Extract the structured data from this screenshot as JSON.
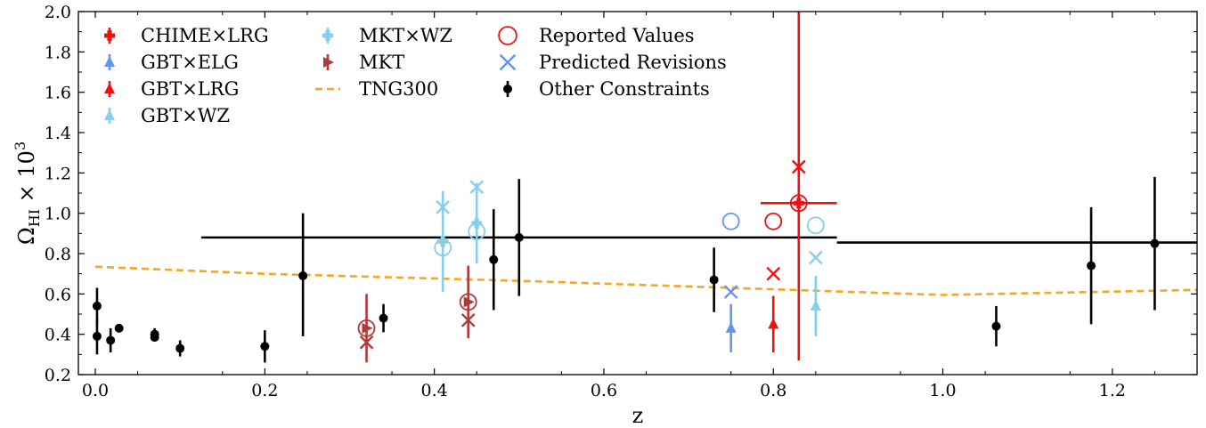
{
  "chart_data": {
    "type": "scatter",
    "title": "",
    "xlabel": "z",
    "ylabel": "Ω_HI × 10^3",
    "xlim": [
      -0.02,
      1.3
    ],
    "ylim": [
      0.2,
      2.0
    ],
    "x_ticks": [
      0.0,
      0.2,
      0.4,
      0.6,
      0.8,
      1.0,
      1.2
    ],
    "x_tick_labels": [
      "0.0",
      "0.2",
      "0.4",
      "0.6",
      "0.8",
      "1.0",
      "1.2"
    ],
    "y_ticks": [
      0.2,
      0.4,
      0.6,
      0.8,
      1.0,
      1.2,
      1.4,
      1.6,
      1.8,
      2.0
    ],
    "y_tick_labels": [
      "0.2",
      "0.4",
      "0.6",
      "0.8",
      "1.0",
      "1.2",
      "1.4",
      "1.6",
      "1.8",
      "2.0"
    ],
    "grid": false,
    "legend_position": "top-left",
    "series": [
      {
        "name": "CHIME×LRG",
        "marker": "plus",
        "color": "#ee1111",
        "points": [
          {
            "x": 0.83,
            "y": 1.05,
            "yerr_low": 0.78,
            "yerr_high": 0.95,
            "xerr": 0.045
          }
        ]
      },
      {
        "name": "GBT×ELG",
        "marker": "triangle-up",
        "color": "#6495ed",
        "points": [
          {
            "x": 0.75,
            "y": 0.43,
            "yerr_low": 0.12,
            "yerr_high": 0.12
          }
        ]
      },
      {
        "name": "GBT×LRG",
        "marker": "triangle-up",
        "color": "#ee1111",
        "points": [
          {
            "x": 0.8,
            "y": 0.45,
            "yerr_low": 0.14,
            "yerr_high": 0.14
          }
        ]
      },
      {
        "name": "GBT×WZ",
        "marker": "triangle-up",
        "color": "#87ceeb",
        "points": [
          {
            "x": 0.85,
            "y": 0.54,
            "yerr_low": 0.15,
            "yerr_high": 0.15
          }
        ]
      },
      {
        "name": "MKT×WZ",
        "marker": "plus",
        "color": "#87ceeb",
        "points": [
          {
            "x": 0.41,
            "y": 0.86,
            "yerr_low": 0.25,
            "yerr_high": 0.25
          },
          {
            "x": 0.45,
            "y": 0.95,
            "yerr_low": 0.2,
            "yerr_high": 0.2
          }
        ]
      },
      {
        "name": "MKT",
        "marker": "triangle-right",
        "color": "#b03a3a",
        "points": [
          {
            "x": 0.32,
            "y": 0.43,
            "yerr_low": 0.17,
            "yerr_high": 0.17
          },
          {
            "x": 0.44,
            "y": 0.56,
            "yerr_low": 0.18,
            "yerr_high": 0.18
          }
        ]
      },
      {
        "name": "Other Constraints",
        "marker": "dot",
        "color": "#000000",
        "points": [
          {
            "x": 0.002,
            "y": 0.54,
            "yerr_low": 0.09,
            "yerr_high": 0.09
          },
          {
            "x": 0.002,
            "y": 0.39,
            "yerr_low": 0.09,
            "yerr_high": 0.09
          },
          {
            "x": 0.018,
            "y": 0.37,
            "yerr_low": 0.06,
            "yerr_high": 0.06
          },
          {
            "x": 0.028,
            "y": 0.43,
            "yerr_low": 0.02,
            "yerr_high": 0.02
          },
          {
            "x": 0.07,
            "y": 0.4,
            "yerr_low": 0.03,
            "yerr_high": 0.03
          },
          {
            "x": 0.07,
            "y": 0.385,
            "yerr_low": 0.02,
            "yerr_high": 0.02
          },
          {
            "x": 0.1,
            "y": 0.33,
            "yerr_low": 0.04,
            "yerr_high": 0.04
          },
          {
            "x": 0.2,
            "y": 0.34,
            "yerr_low": 0.08,
            "yerr_high": 0.08
          },
          {
            "x": 0.245,
            "y": 0.69,
            "yerr_low": 0.3,
            "yerr_high": 0.31
          },
          {
            "x": 0.34,
            "y": 0.48,
            "yerr_low": 0.07,
            "yerr_high": 0.07
          },
          {
            "x": 0.47,
            "y": 0.77,
            "yerr_low": 0.25,
            "yerr_high": 0.25
          },
          {
            "x": 0.5,
            "y": 0.88,
            "yerr_low": 0.29,
            "yerr_high": 0.29
          },
          {
            "x": 0.73,
            "y": 0.67,
            "yerr_low": 0.16,
            "yerr_high": 0.16
          },
          {
            "x": 1.063,
            "y": 0.44,
            "yerr_low": 0.1,
            "yerr_high": 0.1
          },
          {
            "x": 1.175,
            "y": 0.74,
            "yerr_low": 0.29,
            "yerr_high": 0.29
          },
          {
            "x": 1.25,
            "y": 0.85,
            "yerr_low": 0.33,
            "yerr_high": 0.33
          }
        ],
        "hlines": [
          {
            "y": 0.88,
            "x_from": 0.125,
            "x_to": 0.875
          },
          {
            "y": 0.855,
            "x_from": 0.875,
            "x_to": 1.3
          }
        ]
      },
      {
        "name": "TNG300",
        "marker": "dashed-line",
        "color": "#f5a623",
        "line": [
          {
            "x": 0.0,
            "y": 0.735
          },
          {
            "x": 0.2,
            "y": 0.7
          },
          {
            "x": 0.5,
            "y": 0.665
          },
          {
            "x": 1.0,
            "y": 0.595
          },
          {
            "x": 1.3,
            "y": 0.62
          }
        ]
      },
      {
        "name": "Reported Values",
        "marker": "open-circle",
        "points": [
          {
            "x": 0.83,
            "y": 1.05,
            "color": "#ee1111"
          },
          {
            "x": 0.75,
            "y": 0.96,
            "color": "#6495ed"
          },
          {
            "x": 0.8,
            "y": 0.96,
            "color": "#ee1111"
          },
          {
            "x": 0.85,
            "y": 0.94,
            "color": "#87ceeb"
          },
          {
            "x": 0.41,
            "y": 0.83,
            "color": "#87ceeb"
          },
          {
            "x": 0.45,
            "y": 0.91,
            "color": "#87ceeb"
          },
          {
            "x": 0.32,
            "y": 0.43,
            "color": "#b03a3a"
          },
          {
            "x": 0.44,
            "y": 0.56,
            "color": "#b03a3a"
          }
        ]
      },
      {
        "name": "Predicted Revisions",
        "marker": "x",
        "points": [
          {
            "x": 0.83,
            "y": 1.23,
            "color": "#ee1111"
          },
          {
            "x": 0.75,
            "y": 0.61,
            "color": "#6495ed"
          },
          {
            "x": 0.8,
            "y": 0.7,
            "color": "#ee1111"
          },
          {
            "x": 0.85,
            "y": 0.78,
            "color": "#87ceeb"
          },
          {
            "x": 0.41,
            "y": 1.03,
            "color": "#87ceeb"
          },
          {
            "x": 0.45,
            "y": 1.13,
            "color": "#87ceeb"
          },
          {
            "x": 0.32,
            "y": 0.36,
            "color": "#b03a3a"
          },
          {
            "x": 0.44,
            "y": 0.47,
            "color": "#b03a3a"
          }
        ]
      }
    ],
    "legend": [
      {
        "label": "CHIME×LRG",
        "marker": "plus",
        "color": "#ee1111"
      },
      {
        "label": "GBT×ELG",
        "marker": "triangle-up",
        "color": "#6495ed"
      },
      {
        "label": "GBT×LRG",
        "marker": "triangle-up",
        "color": "#ee1111"
      },
      {
        "label": "GBT×WZ",
        "marker": "triangle-up",
        "color": "#87ceeb"
      },
      {
        "label": "MKT×WZ",
        "marker": "plus",
        "color": "#87ceeb"
      },
      {
        "label": "MKT",
        "marker": "triangle-right",
        "color": "#b03a3a"
      },
      {
        "label": "TNG300",
        "marker": "dashed-line",
        "color": "#f5a623"
      },
      {
        "label": "Reported Values",
        "marker": "open-circle",
        "color": "#ee1111"
      },
      {
        "label": "Predicted Revisions",
        "marker": "x",
        "color": "#6495ed"
      },
      {
        "label": "Other Constraints",
        "marker": "dot",
        "color": "#000000"
      }
    ]
  }
}
